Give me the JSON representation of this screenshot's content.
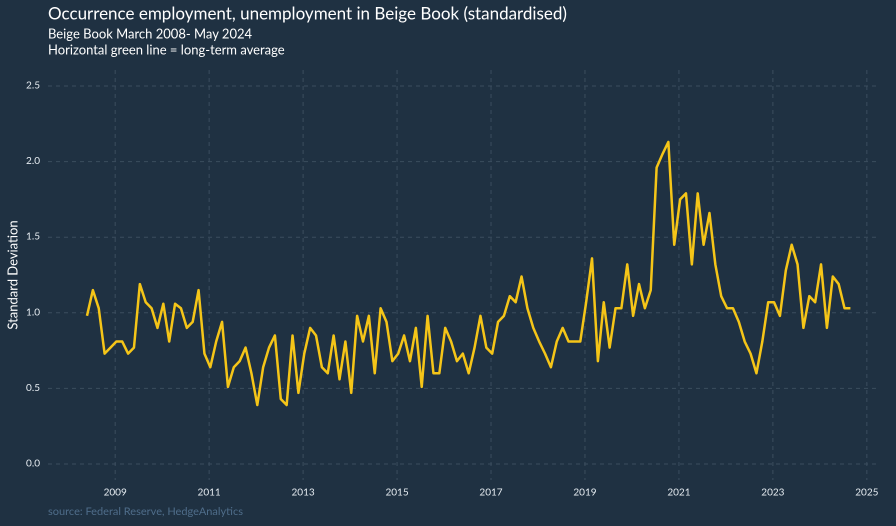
{
  "chart_data": {
    "type": "line",
    "title": "Occurrence employment, unemployment in Beige Book (standardised)",
    "subtitle": [
      "Beige Book March 2008- May 2024",
      "Horizontal green line = long-term average"
    ],
    "y_label": "Standard Deviation",
    "source": "source: Federal Reserve, HedgeAnalytics",
    "x": [
      2008.4,
      2008.525,
      2008.65,
      2008.775,
      2008.9,
      2009.025,
      2009.15,
      2009.275,
      2009.4,
      2009.525,
      2009.65,
      2009.775,
      2009.9,
      2010.025,
      2010.15,
      2010.275,
      2010.4,
      2010.525,
      2010.65,
      2010.775,
      2010.9,
      2011.025,
      2011.15,
      2011.275,
      2011.4,
      2011.525,
      2011.65,
      2011.775,
      2011.9,
      2012.025,
      2012.15,
      2012.275,
      2012.4,
      2012.525,
      2012.65,
      2012.775,
      2012.9,
      2013.025,
      2013.15,
      2013.275,
      2013.4,
      2013.525,
      2013.65,
      2013.775,
      2013.9,
      2014.025,
      2014.15,
      2014.275,
      2014.4,
      2014.525,
      2014.65,
      2014.775,
      2014.9,
      2015.025,
      2015.15,
      2015.275,
      2015.4,
      2015.525,
      2015.65,
      2015.775,
      2015.9,
      2016.025,
      2016.15,
      2016.275,
      2016.4,
      2016.525,
      2016.65,
      2016.775,
      2016.9,
      2017.025,
      2017.15,
      2017.275,
      2017.4,
      2017.525,
      2017.65,
      2017.775,
      2017.9,
      2018.025,
      2018.15,
      2018.275,
      2018.4,
      2018.525,
      2018.65,
      2018.775,
      2018.9,
      2019.025,
      2019.15,
      2019.275,
      2019.4,
      2019.525,
      2019.65,
      2019.775,
      2019.9,
      2020.025,
      2020.15,
      2020.275,
      2020.4,
      2020.525,
      2020.65,
      2020.775,
      2020.9,
      2021.025,
      2021.15,
      2021.275,
      2021.4,
      2021.525,
      2021.65,
      2021.775,
      2021.9,
      2022.025,
      2022.15,
      2022.275,
      2022.4,
      2022.525,
      2022.65,
      2022.775,
      2022.9,
      2023.025,
      2023.15,
      2023.275,
      2023.4,
      2023.525,
      2023.65,
      2023.775,
      2023.9,
      2024.025,
      2024.15,
      2024.275,
      2024.4,
      2024.525,
      2024.65
    ],
    "series": [
      {
        "name": "Standard Deviation",
        "color": "#f5c518",
        "values": [
          0.98,
          1.15,
          1.03,
          0.73,
          0.77,
          0.81,
          0.81,
          0.73,
          0.77,
          1.19,
          1.07,
          1.03,
          0.9,
          1.06,
          0.81,
          1.06,
          1.03,
          0.9,
          0.94,
          1.15,
          0.73,
          0.64,
          0.81,
          0.94,
          0.51,
          0.64,
          0.68,
          0.77,
          0.6,
          0.39,
          0.64,
          0.77,
          0.85,
          0.43,
          0.39,
          0.85,
          0.47,
          0.73,
          0.9,
          0.85,
          0.64,
          0.6,
          0.85,
          0.56,
          0.81,
          0.47,
          0.98,
          0.81,
          0.98,
          0.6,
          1.03,
          0.94,
          0.68,
          0.73,
          0.85,
          0.68,
          0.9,
          0.51,
          0.98,
          0.6,
          0.6,
          0.9,
          0.81,
          0.68,
          0.73,
          0.6,
          0.77,
          0.98,
          0.77,
          0.73,
          0.94,
          0.98,
          1.11,
          1.07,
          1.24,
          1.03,
          0.9,
          0.81,
          0.73,
          0.64,
          0.81,
          0.9,
          0.81,
          0.81,
          0.81,
          1.07,
          1.36,
          0.68,
          1.07,
          0.77,
          1.03,
          1.03,
          1.32,
          0.98,
          1.19,
          1.03,
          1.15,
          1.96,
          2.05,
          2.13,
          1.45,
          1.75,
          1.79,
          1.32,
          1.79,
          1.45,
          1.66,
          1.32,
          1.11,
          1.03,
          1.03,
          0.94,
          0.81,
          0.73,
          0.6,
          0.81,
          1.07,
          1.07,
          0.98,
          1.28,
          1.45,
          1.32,
          0.9,
          1.11,
          1.07,
          1.32,
          0.9,
          1.24,
          1.19,
          1.03,
          1.03
        ]
      }
    ],
    "xlim": [
      2007.57,
      2025.28
    ],
    "xticks": [
      2009,
      2011,
      2013,
      2015,
      2017,
      2019,
      2021,
      2023,
      2025
    ],
    "ylim": [
      -0.106,
      2.606
    ],
    "yticks": [
      {
        "value": 0,
        "label": "0.0"
      },
      0.5,
      {
        "value": 1,
        "label": "1.0"
      },
      1.5,
      {
        "value": 2,
        "label": "2.0"
      },
      2.5
    ],
    "grid": true
  }
}
